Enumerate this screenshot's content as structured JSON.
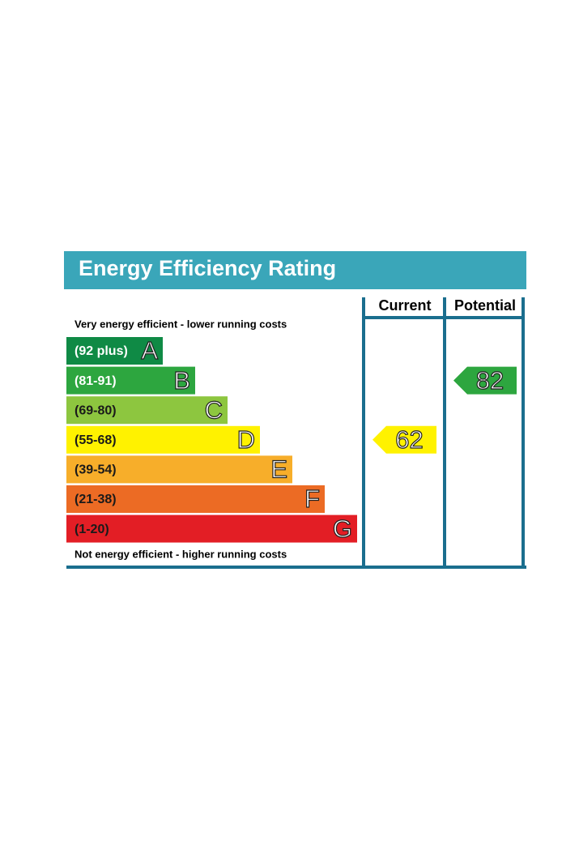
{
  "header": {
    "title": "Energy Efficiency Rating",
    "columns": [
      "Current",
      "Potential"
    ]
  },
  "top_note": "Very energy efficient - lower running costs",
  "bottom_note": "Not energy efficient - higher running costs",
  "bands": [
    {
      "range": "(92 plus)",
      "letter": "A",
      "color": "#0f8a45",
      "text_color": "#ffffff"
    },
    {
      "range": "(81-91)",
      "letter": "B",
      "color": "#2da63f",
      "text_color": "#ffffff"
    },
    {
      "range": "(69-80)",
      "letter": "C",
      "color": "#8dc63f",
      "text_color": "#1a1a1a"
    },
    {
      "range": "(55-68)",
      "letter": "D",
      "color": "#fff200",
      "text_color": "#1a1a1a"
    },
    {
      "range": "(39-54)",
      "letter": "E",
      "color": "#f7ae2a",
      "text_color": "#1a1a1a"
    },
    {
      "range": "(21-38)",
      "letter": "F",
      "color": "#ec6b24",
      "text_color": "#1a1a1a"
    },
    {
      "range": "(1-20)",
      "letter": "G",
      "color": "#e31e25",
      "text_color": "#1a1a1a"
    }
  ],
  "ratings": [
    {
      "column": 0,
      "value": 62
    },
    {
      "column": 1,
      "value": 82
    }
  ]
}
